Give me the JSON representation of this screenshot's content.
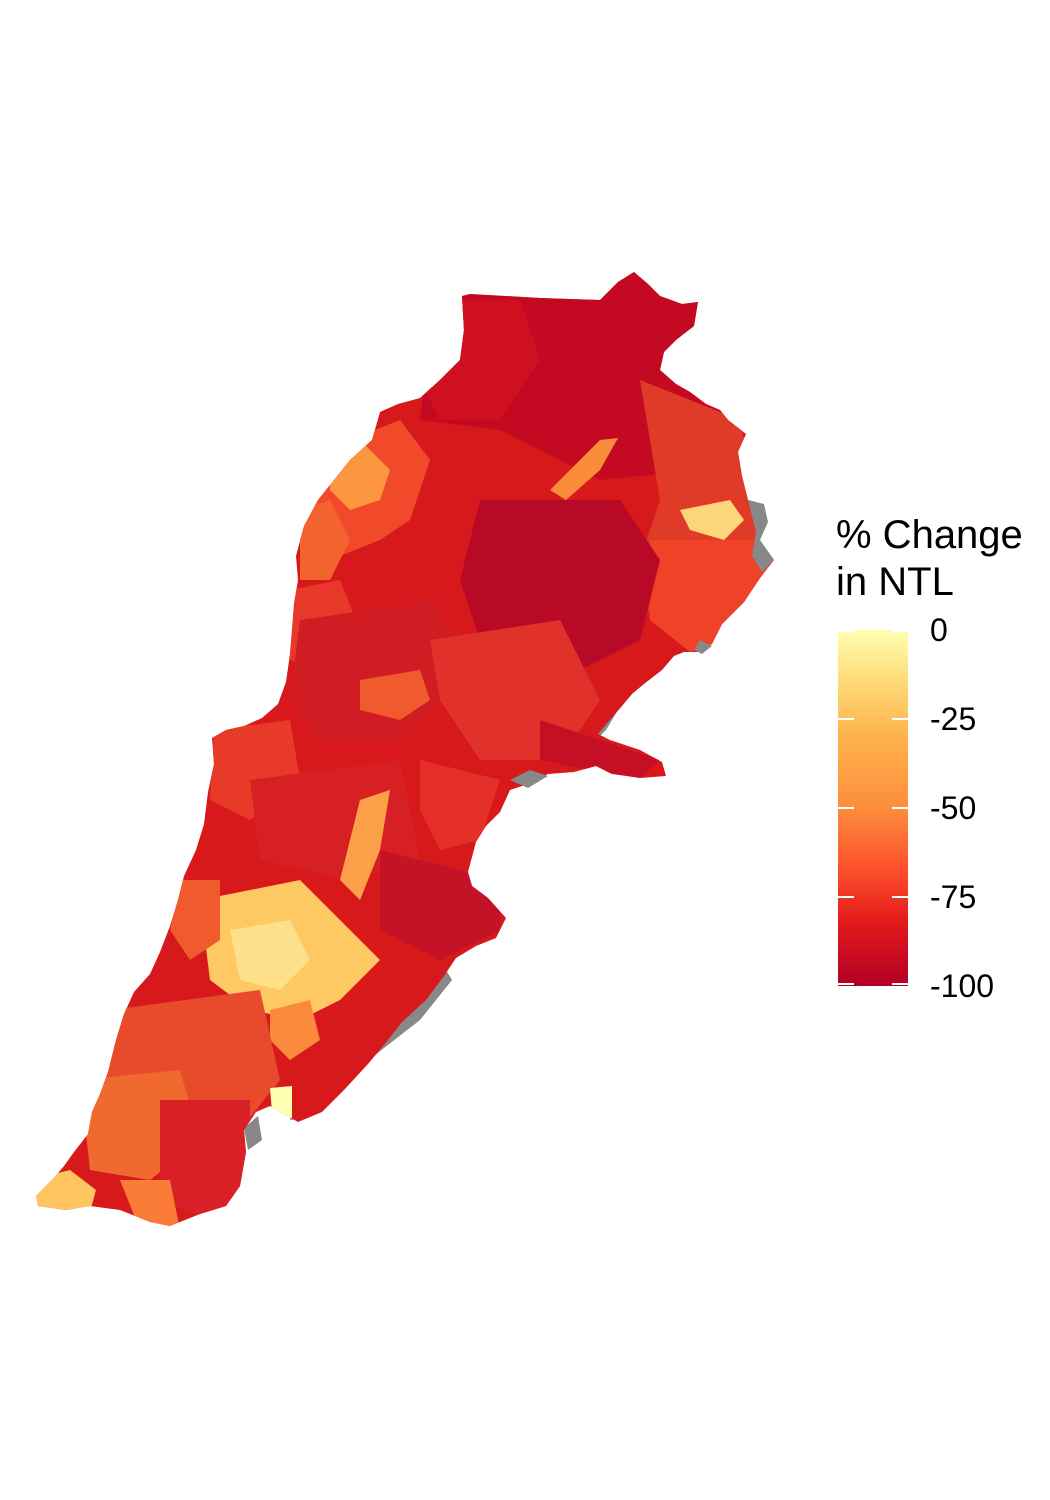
{
  "legend": {
    "title_line1": "% Change",
    "title_line2": "in NTL",
    "labels": [
      "0",
      "-25",
      "-50",
      "-75",
      "-100"
    ],
    "breaks": [
      0,
      -25,
      -50,
      -75,
      -100
    ],
    "range": [
      -100,
      0
    ],
    "gradient_stops": [
      "#b10026",
      "#e31a1c",
      "#fc4e2a",
      "#fd8d3c",
      "#feb24c",
      "#fed976",
      "#ffffb2"
    ]
  },
  "map": {
    "no_data_color": "#888888",
    "regions_described": [
      {
        "area": "north",
        "value": -92
      },
      {
        "area": "north-coast",
        "value": -40
      },
      {
        "area": "bekaa-north",
        "value": -85
      },
      {
        "area": "hermel-east",
        "value": -70
      },
      {
        "area": "bekaa-lake",
        "value": -45
      },
      {
        "area": "bekaa-east-pocket",
        "value": -15
      },
      {
        "area": "mount-lebanon",
        "value": -80
      },
      {
        "area": "beirut-area",
        "value": -20
      },
      {
        "area": "south",
        "value": -70
      },
      {
        "area": "south-tip",
        "value": -20
      },
      {
        "area": "south-coast-pocket",
        "value": -5
      }
    ]
  }
}
